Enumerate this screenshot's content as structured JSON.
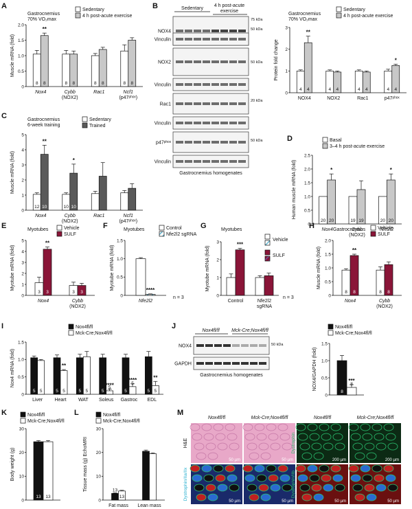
{
  "colors": {
    "white": "#ffffff",
    "grey": "#c8c8c8",
    "dark_grey": "#5a5a5a",
    "black": "#111111",
    "maroon": "#8a1538",
    "he_pink": "#e8a8c8",
    "if_green": "#2ac070"
  },
  "panels": {
    "A": {
      "label": "A",
      "condition": [
        "Gastrocnemius",
        "70% VO₂max"
      ],
      "legend": [
        "Sedentary",
        "4 h post-acute exercise"
      ],
      "chart_data": {
        "type": "bar",
        "ylabel": "Muscle mRNA (fold)",
        "ylim": [
          0,
          2.0
        ],
        "yticks": [
          "0",
          "0.5",
          "1.0",
          "1.5",
          "2.0"
        ],
        "categories": [
          "Nox4",
          "Cybb\n(NOX2)",
          "Rac1",
          "Ncf1\n(p47phox)"
        ],
        "series": [
          {
            "name": "Sedentary",
            "values": [
              1.05,
              1.05,
              1.0,
              1.15
            ],
            "err": [
              0.12,
              0.12,
              0.07,
              0.2
            ],
            "n": [
              "8",
              "8",
              "8",
              "8"
            ]
          },
          {
            "name": "4 h post-acute exercise",
            "values": [
              1.65,
              1.05,
              1.2,
              1.5
            ],
            "err": [
              0.08,
              0.1,
              0.07,
              0.08
            ],
            "n": [
              "8",
              "8",
              "8",
              "8"
            ]
          }
        ],
        "stars": [
          [
            "",
            "**"
          ],
          [
            "",
            ""
          ],
          [
            "",
            ""
          ],
          [
            "",
            ""
          ]
        ]
      }
    },
    "B": {
      "label": "B",
      "groups": [
        "Sedentary",
        "4 h post-acute exercise"
      ],
      "blots": [
        "NOX4",
        "Vinculin",
        "NOX2",
        "Vinculin",
        "Rac1",
        "Vinculin",
        "p47phox",
        "Vinculin"
      ],
      "markers": [
        "75 kDa",
        "50 kDa",
        "50 kDa",
        "20 kDa",
        "50 kDa"
      ],
      "caption": "Gastrocnemius homogenates",
      "condition": [
        "Gastrocnemius",
        "70% VO₂max"
      ],
      "legend": [
        "Sedentary",
        "4 h post-acute exercise"
      ],
      "chart_data": {
        "type": "bar",
        "ylabel": "Protein fold change",
        "ylim": [
          0,
          3
        ],
        "yticks": [
          "0",
          "1",
          "2",
          "3"
        ],
        "categories": [
          "NOX4",
          "NOX2",
          "Rac1",
          "p47phox"
        ],
        "series": [
          {
            "name": "Sedentary",
            "values": [
              1.0,
              1.0,
              1.0,
              1.0
            ],
            "err": [
              0.05,
              0.05,
              0.05,
              0.08
            ],
            "n": [
              "4",
              "4",
              "4",
              "4"
            ]
          },
          {
            "name": "4 h post-acute exercise",
            "values": [
              2.3,
              0.95,
              0.95,
              1.25
            ],
            "err": [
              0.3,
              0.05,
              0.05,
              0.06
            ],
            "n": [
              "4",
              "4",
              "4",
              "4"
            ]
          }
        ],
        "stars": [
          [
            "",
            "**"
          ],
          [
            "",
            ""
          ],
          [
            "",
            ""
          ],
          [
            "",
            "*"
          ]
        ]
      }
    },
    "C": {
      "label": "C",
      "condition": [
        "Gastrocnemius",
        "6-week training"
      ],
      "legend": [
        "Sedentary",
        "Trained"
      ],
      "chart_data": {
        "type": "bar",
        "ylabel": "Muscle mRNA (fold)",
        "ylim": [
          0,
          5
        ],
        "yticks": [
          "0",
          "1",
          "2",
          "3",
          "4",
          "5"
        ],
        "categories": [
          "Nox4",
          "Cybb\n(NOX2)",
          "Rac1",
          "Ncf1\n(p47phox)"
        ],
        "series": [
          {
            "name": "Sedentary",
            "values": [
              1.05,
              1.05,
              1.1,
              1.15
            ],
            "err": [
              0.1,
              0.1,
              0.15,
              0.15
            ],
            "n": [
              "12",
              "10",
              "",
              ""
            ]
          },
          {
            "name": "Trained",
            "values": [
              3.7,
              2.45,
              2.25,
              1.45
            ],
            "err": [
              0.6,
              0.6,
              0.9,
              0.3
            ],
            "n": [
              "10",
              "10",
              "",
              ""
            ]
          }
        ],
        "stars": [
          [
            "",
            "**"
          ],
          [
            "",
            "*"
          ],
          [
            "",
            ""
          ],
          [
            "",
            ""
          ]
        ]
      }
    },
    "D": {
      "label": "D",
      "legend": [
        "Basal",
        "3–4 h post-acute exercise"
      ],
      "chart_data": {
        "type": "bar",
        "ylabel": "Human muscle mRNA (fold)",
        "ylim": [
          0,
          2.5
        ],
        "yticks": [
          "0",
          "0.5",
          "1.0",
          "1.5",
          "2.0",
          "2.5"
        ],
        "categories": [
          "Nox4",
          "Cybb\n(NOX2)",
          "Nfe2l2"
        ],
        "series": [
          {
            "name": "Basal",
            "values": [
              1.0,
              1.0,
              1.0
            ],
            "err": [
              0,
              0,
              0
            ],
            "n": [
              "20",
              "19",
              "20"
            ]
          },
          {
            "name": "3–4 h post-acute exercise",
            "values": [
              1.6,
              1.25,
              1.6
            ],
            "err": [
              0.22,
              0.32,
              0.22
            ],
            "n": [
              "20",
              "19",
              "20"
            ]
          }
        ],
        "stars": [
          [
            "",
            "*"
          ],
          [
            "",
            ""
          ],
          [
            "",
            "*"
          ]
        ]
      }
    },
    "E": {
      "label": "E",
      "condition": [
        "Myotubes"
      ],
      "legend": [
        "Vehicle",
        "SULF"
      ],
      "chart_data": {
        "type": "bar",
        "ylabel": "Myotube mRNA (fold)",
        "ylim": [
          0,
          5
        ],
        "yticks": [
          "0",
          "1",
          "2",
          "3",
          "4",
          "5"
        ],
        "categories": [
          "Nox4",
          "Cybb\n(NOX2)"
        ],
        "series": [
          {
            "name": "Vehicle",
            "values": [
              1.15,
              0.9
            ],
            "err": [
              0.5,
              0.3
            ],
            "n": [
              "3",
              "3"
            ]
          },
          {
            "name": "SULF",
            "values": [
              4.2,
              0.9
            ],
            "err": [
              0.2,
              0.2
            ],
            "n": [
              "3",
              "3"
            ]
          }
        ],
        "stars": [
          [
            "",
            "**"
          ],
          [
            "",
            ""
          ]
        ]
      }
    },
    "F": {
      "label": "F",
      "condition": [
        "Myotubes"
      ],
      "legend": [
        "Control",
        "Nfe2l2 sgRNA"
      ],
      "n_note": "n = 3",
      "chart_data": {
        "type": "bar",
        "ylabel": "Myotube mRNA (fold)",
        "ylim": [
          0,
          1.5
        ],
        "yticks": [
          "0",
          "0.5",
          "1.0",
          "1.5"
        ],
        "categories": [
          "Nfe2l2"
        ],
        "series": [
          {
            "name": "Control",
            "values": [
              1.0
            ],
            "err": [
              0.03
            ],
            "n": [
              ""
            ]
          },
          {
            "name": "Nfe2l2 sgRNA",
            "values": [
              0.03
            ],
            "err": [
              0.01
            ],
            "n": [
              ""
            ]
          }
        ],
        "stars": [
          [
            "",
            "****"
          ]
        ]
      }
    },
    "G": {
      "label": "G",
      "condition": [
        "Myotubes"
      ],
      "legend_labels": [
        "Vehicle",
        "SULF"
      ],
      "n_note": "n = 3",
      "chart_data": {
        "type": "bar",
        "ylabel": "Myotube mRNA (fold)",
        "ylim": [
          0,
          3
        ],
        "yticks": [
          "0",
          "1",
          "2",
          "3"
        ],
        "categories": [
          "Control",
          "Nfe2l2\nsgRNA"
        ],
        "series": [
          {
            "name": "Vehicle",
            "values": [
              1.0,
              1.0
            ],
            "err": [
              0.2,
              0.1
            ],
            "n": [
              "",
              ""
            ]
          },
          {
            "name": "SULF",
            "values": [
              2.55,
              1.1
            ],
            "err": [
              0.08,
              0.15
            ],
            "n": [
              "",
              ""
            ]
          }
        ],
        "stars": [
          [
            "",
            "***"
          ],
          [
            "",
            ""
          ]
        ]
      }
    },
    "H": {
      "label": "H",
      "condition": [
        "Gastrocnemius"
      ],
      "legend": [
        "Vehicle",
        "SULF"
      ],
      "chart_data": {
        "type": "bar",
        "ylabel": "Muscle mRNA (fold)",
        "ylim": [
          0,
          2.0
        ],
        "yticks": [
          "0",
          "0.5",
          "1.0",
          "1.5",
          "2.0"
        ],
        "categories": [
          "Nox4",
          "Cybb\n(NOX2)"
        ],
        "series": [
          {
            "name": "Vehicle",
            "values": [
              0.92,
              0.92
            ],
            "err": [
              0.05,
              0.12
            ],
            "n": [
              "8",
              "8"
            ]
          },
          {
            "name": "SULF",
            "values": [
              1.45,
              1.12
            ],
            "err": [
              0.05,
              0.1
            ],
            "n": [
              "8",
              "8"
            ]
          }
        ],
        "stars": [
          [
            "",
            "**"
          ],
          [
            "",
            ""
          ]
        ]
      }
    },
    "I": {
      "label": "I",
      "legend": [
        "Nox4fl/fl",
        "Mck-Cre;Nox4fl/fl"
      ],
      "chart_data": {
        "type": "bar",
        "ylabel": "Nox4 mRNA (fold)",
        "ylim": [
          0,
          1.5
        ],
        "yticks": [
          "0",
          "0.5",
          "1.0",
          "1.5"
        ],
        "categories": [
          "Liver",
          "Heart",
          "WAT",
          "Soleus",
          "Gastroc",
          "EDL"
        ],
        "series": [
          {
            "name": "Nox4fl/fl",
            "values": [
              1.05,
              1.05,
              1.05,
              1.05,
              1.05,
              1.08
            ],
            "err": [
              0.05,
              0.08,
              0.1,
              0.1,
              0.1,
              0.15
            ],
            "n": [
              "5",
              "5",
              "5",
              "5",
              "5",
              "5"
            ]
          },
          {
            "name": "Mck-Cre;Nox4fl/fl",
            "values": [
              0.97,
              0.68,
              1.08,
              0.1,
              0.22,
              0.25
            ],
            "err": [
              0.03,
              0.03,
              0.15,
              0.05,
              0.08,
              0.12
            ],
            "n": [
              "5",
              "5",
              "5",
              "5",
              "5",
              "5"
            ]
          }
        ],
        "stars": [
          [
            "",
            ""
          ],
          [
            "",
            "**"
          ],
          [
            "",
            ""
          ],
          [
            "",
            "****"
          ],
          [
            "",
            "****"
          ],
          [
            "",
            "**"
          ]
        ]
      }
    },
    "J": {
      "label": "J",
      "groups": [
        "Nox4fl/fl",
        "Mck-Cre;Nox4fl/fl"
      ],
      "blots": [
        "NOX4",
        "GAPDH"
      ],
      "marker": "50 kDa",
      "caption": "Gastrocnemius homogenates",
      "legend": [
        "Nox4fl/fl",
        "Mck-Cre;Nox4fl/fl"
      ],
      "chart_data": {
        "type": "bar",
        "ylabel": "NOX4/GAPDH (fold)",
        "ylim": [
          0,
          1.5
        ],
        "yticks": [
          "0",
          "0.5",
          "1.0",
          "1.5"
        ],
        "categories": [
          ""
        ],
        "series": [
          {
            "name": "Nox4fl/fl",
            "values": [
              1.0
            ],
            "err": [
              0.15
            ],
            "n": [
              "8"
            ]
          },
          {
            "name": "Mck-Cre;Nox4fl/fl",
            "values": [
              0.22
            ],
            "err": [
              0.08
            ],
            "n": [
              "8"
            ]
          }
        ],
        "stars": [
          [
            "",
            "***"
          ]
        ]
      }
    },
    "K": {
      "label": "K",
      "legend": [
        "Nox4fl/fl",
        "Mck-Cre;Nox4fl/fl"
      ],
      "chart_data": {
        "type": "bar",
        "ylabel": "Body weight (g)",
        "ylim": [
          0,
          30
        ],
        "yticks": [
          "0",
          "10",
          "20",
          "30"
        ],
        "categories": [
          ""
        ],
        "series": [
          {
            "name": "Nox4fl/fl",
            "values": [
              24.5
            ],
            "err": [
              0.5
            ],
            "n": [
              "13"
            ]
          },
          {
            "name": "Mck-Cre;Nox4fl/fl",
            "values": [
              24.5
            ],
            "err": [
              0.5
            ],
            "n": [
              "13"
            ]
          }
        ],
        "stars": [
          [
            "",
            ""
          ]
        ]
      }
    },
    "L": {
      "label": "L",
      "legend": [
        "Nox4fl/fl",
        "Mck-Cre;Nox4fl/fl"
      ],
      "chart_data": {
        "type": "bar",
        "ylabel": "Tissue mass (g) EchoMRI",
        "ylim": [
          0,
          30
        ],
        "yticks": [
          "0",
          "10",
          "20",
          "30"
        ],
        "categories": [
          "Fat mass",
          "Lean mass"
        ],
        "series": [
          {
            "name": "Nox4fl/fl",
            "values": [
              2.8,
              20.5
            ],
            "err": [
              0.2,
              0.5
            ],
            "n": [
              "13",
              ""
            ]
          },
          {
            "name": "Mck-Cre;Nox4fl/fl",
            "values": [
              3.8,
              19.5
            ],
            "err": [
              0.3,
              0.3
            ],
            "n": [
              "13",
              ""
            ]
          }
        ],
        "stars": [
          [
            "",
            ""
          ],
          [
            "",
            ""
          ]
        ]
      }
    },
    "M": {
      "label": "M",
      "columns": [
        "Nox4fl/fl",
        "Mck-Cre;Nox4fl/fl",
        "Nox4fl/fl",
        "Mck-Cre;Nox4fl/fl"
      ],
      "row_labels": [
        "H&E",
        "Dystrophin/IIa/IIx",
        "Dystrophin",
        "Dystrophin/IIb"
      ],
      "scale_bars": [
        "50 µm",
        "50 µm",
        "200 µm",
        "200 µm",
        "50 µm",
        "50 µm",
        "50 µm",
        "50 µm"
      ]
    }
  }
}
